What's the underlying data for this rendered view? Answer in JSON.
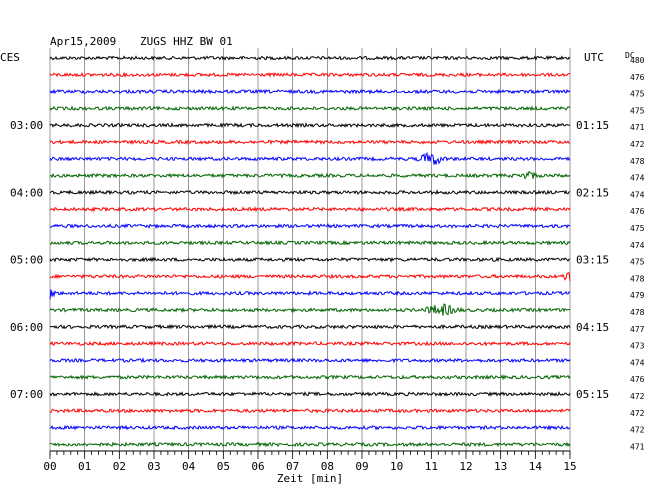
{
  "header": {
    "date": "Apr15,2009",
    "station": "ZUGS HHZ BW 01",
    "left_zone": "CES",
    "right_zone": "UTC",
    "dc_label": "DC"
  },
  "chart_data": {
    "type": "line",
    "xlabel": "Zeit [min]",
    "xlim": [
      0,
      15
    ],
    "x_ticks": [
      "00",
      "01",
      "02",
      "03",
      "04",
      "05",
      "06",
      "07",
      "08",
      "09",
      "10",
      "11",
      "12",
      "13",
      "14",
      "15"
    ],
    "left_time_labels": [
      {
        "row": 4,
        "text": "03:00"
      },
      {
        "row": 8,
        "text": "04:00"
      },
      {
        "row": 12,
        "text": "05:00"
      },
      {
        "row": 16,
        "text": "06:00"
      },
      {
        "row": 20,
        "text": "07:00"
      }
    ],
    "right_time_labels": [
      {
        "row": 4,
        "text": "01:15"
      },
      {
        "row": 8,
        "text": "02:15"
      },
      {
        "row": 12,
        "text": "03:15"
      },
      {
        "row": 16,
        "text": "04:15"
      },
      {
        "row": 20,
        "text": "05:15"
      }
    ],
    "dc_values": [
      "480",
      "476",
      "475",
      "475",
      "471",
      "472",
      "478",
      "474",
      "474",
      "476",
      "475",
      "474",
      "475",
      "478",
      "479",
      "478",
      "477",
      "473",
      "474",
      "476",
      "472",
      "472",
      "472",
      "471"
    ],
    "series_colors": [
      "#000000",
      "#ff0000",
      "#0000ff",
      "#006400"
    ],
    "events": [
      {
        "row": 6,
        "minute": 11.0,
        "amplitude": 3.2,
        "width": 0.45
      },
      {
        "row": 7,
        "minute": 13.8,
        "amplitude": 1.6,
        "width": 0.35
      },
      {
        "row": 13,
        "minute": 15.0,
        "amplitude": 2.8,
        "width": 0.25
      },
      {
        "row": 14,
        "minute": 0.0,
        "amplitude": 2.6,
        "width": 0.2
      },
      {
        "row": 15,
        "minute": 11.3,
        "amplitude": 2.6,
        "width": 0.6
      }
    ]
  }
}
